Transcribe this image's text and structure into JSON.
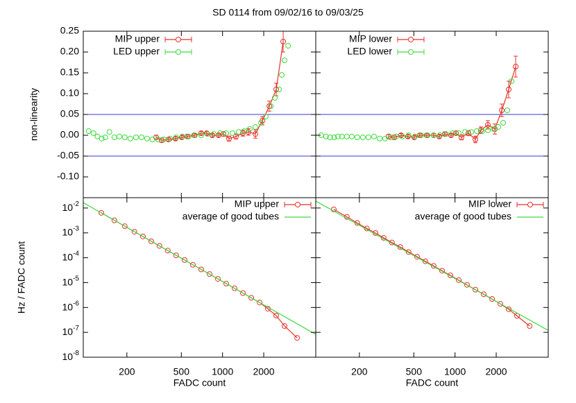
{
  "title": "SD 0114  from 09/02/16 to 09/03/25",
  "chart_data": [
    {
      "type": "line",
      "y_label": "non-linearity",
      "xscale": "log",
      "xlim": [
        96,
        4800
      ],
      "ylim": [
        -0.15,
        0.25
      ],
      "yticks": [
        0.25,
        {
          "value": 0.2,
          "label": "0.20"
        },
        0.15,
        {
          "value": 0.1,
          "label": "0.10"
        },
        0.05,
        {
          "value": 0,
          "label": "0.00"
        },
        -0.05,
        {
          "value": -0.1,
          "label": "-0.10"
        }
      ],
      "hlines": [
        0.05,
        -0.05
      ],
      "hline_color": "#3a3ad6",
      "legend": "upper left",
      "series": [
        {
          "name": "MIP upper",
          "color": "#e8302a",
          "style": "linespoints",
          "x": [
            327,
            359,
            403,
            453,
            504,
            553,
            621,
            698,
            767,
            842,
            935,
            1016,
            1115,
            1253,
            1409,
            1545,
            1738,
            1954,
            2198,
            2467,
            2775
          ],
          "values": [
            -0.005,
            -0.012,
            -0.01,
            -0.008,
            -0.005,
            -0.003,
            0.0,
            0.005,
            0.005,
            0.0,
            0.0,
            0.003,
            -0.008,
            -0.003,
            0.005,
            0.008,
            0.003,
            0.035,
            0.07,
            0.11,
            0.225
          ],
          "errors": [
            0.005,
            0.005,
            0.004,
            0.004,
            0.004,
            0.004,
            0.004,
            0.004,
            0.004,
            0.004,
            0.004,
            0.005,
            0.006,
            0.006,
            0.007,
            0.008,
            0.01,
            0.01,
            0.012,
            0.015,
            0.025
          ]
        },
        {
          "name": "LED upper",
          "color": "#3ddc3d",
          "style": "points",
          "x": [
            105,
            114,
            122,
            131,
            139,
            149,
            162,
            176,
            193,
            212,
            233,
            256,
            281,
            308,
            338,
            372,
            413,
            458,
            509,
            566,
            629,
            698,
            776,
            862,
            958,
            1064,
            1183,
            1313,
            1442,
            1581,
            1738,
            1910,
            2070,
            2249,
            2410,
            2588,
            2710,
            2838,
            3013
          ],
          "values": [
            0.01,
            0.005,
            -0.003,
            -0.008,
            -0.005,
            0.008,
            -0.005,
            -0.003,
            -0.005,
            -0.008,
            -0.005,
            -0.005,
            -0.008,
            -0.01,
            -0.01,
            -0.01,
            -0.008,
            -0.005,
            -0.003,
            -0.003,
            0.0,
            0.0,
            0.003,
            0.003,
            0.005,
            0.005,
            0.005,
            0.008,
            0.01,
            0.015,
            0.02,
            0.03,
            0.045,
            0.07,
            0.09,
            0.11,
            0.145,
            0.18,
            0.215
          ]
        }
      ]
    },
    {
      "type": "line",
      "xscale": "log",
      "xlim": [
        96,
        4800
      ],
      "ylim": [
        -0.15,
        0.25
      ],
      "hlines": [
        0.05,
        -0.05
      ],
      "hline_color": "#3a3ad6",
      "legend": "upper left",
      "series": [
        {
          "name": "MIP lower",
          "color": "#e8302a",
          "style": "linespoints",
          "x": [
            327,
            359,
            403,
            453,
            504,
            553,
            621,
            698,
            767,
            842,
            935,
            1016,
            1115,
            1253,
            1409,
            1545,
            1738,
            1954,
            2198,
            2467,
            2775
          ],
          "values": [
            -0.003,
            -0.005,
            0.0,
            -0.003,
            -0.005,
            0.0,
            0.0,
            0.0,
            -0.003,
            0.003,
            0.0,
            0.005,
            -0.005,
            0.005,
            -0.01,
            0.012,
            0.025,
            0.015,
            0.06,
            0.11,
            0.165
          ],
          "errors": [
            0.005,
            0.005,
            0.004,
            0.004,
            0.004,
            0.004,
            0.004,
            0.004,
            0.004,
            0.004,
            0.004,
            0.005,
            0.006,
            0.006,
            0.008,
            0.008,
            0.01,
            0.012,
            0.015,
            0.02,
            0.025
          ]
        },
        {
          "name": "LED lower",
          "color": "#3ddc3d",
          "style": "points",
          "x": [
            105,
            114,
            122,
            131,
            139,
            149,
            162,
            176,
            193,
            212,
            233,
            256,
            281,
            308,
            338,
            372,
            413,
            458,
            509,
            566,
            629,
            698,
            776,
            862,
            958,
            1064,
            1183,
            1313,
            1442,
            1581,
            1738,
            1910,
            2070,
            2249,
            2410,
            2588
          ],
          "values": [
            0.0,
            -0.003,
            -0.005,
            -0.005,
            -0.003,
            -0.003,
            -0.003,
            -0.003,
            -0.005,
            -0.005,
            -0.005,
            -0.003,
            -0.008,
            -0.008,
            -0.005,
            -0.003,
            -0.003,
            0.0,
            -0.003,
            0.0,
            0.0,
            0.0,
            0.0,
            0.003,
            0.005,
            0.005,
            0.008,
            0.008,
            0.01,
            0.01,
            0.012,
            0.015,
            0.02,
            0.03,
            0.06,
            0.13
          ]
        }
      ]
    },
    {
      "type": "line",
      "y_label": "Hz / FADC count",
      "x_label": "FADC count",
      "xscale": "log",
      "yscale": "log",
      "xlim": [
        96,
        4800
      ],
      "ylim": [
        1e-08,
        0.026
      ],
      "xticks": [
        200,
        500,
        1000,
        2000
      ],
      "yticks": [
        {
          "value": 0.01,
          "label": "10^-2"
        },
        {
          "value": 0.001,
          "label": "10^-3"
        },
        {
          "value": 0.0001,
          "label": "10^-4"
        },
        {
          "value": 1e-05,
          "label": "10^-5"
        },
        {
          "value": 1e-06,
          "label": "10^-6"
        },
        {
          "value": 1e-07,
          "label": "10^-7"
        },
        {
          "value": 1e-08,
          "label": "10^-8"
        }
      ],
      "legend": "upper right",
      "series": [
        {
          "name": "MIP upper",
          "color": "#e8302a",
          "style": "linespoints",
          "x": [
            130,
            162,
            193,
            227,
            262,
            301,
            346,
            398,
            458,
            528,
            607,
            698,
            804,
            925,
            1064,
            1224,
            1409,
            1622,
            1866,
            2144,
            2467,
            2838,
            3508
          ],
          "values": [
            0.0064,
            0.0032,
            0.00185,
            0.00111,
            0.00072,
            0.00046,
            0.0003,
            0.000194,
            0.000125,
            8.1e-05,
            5.2e-05,
            3.4e-05,
            2.2e-05,
            1.41e-05,
            9.1e-06,
            5.9e-06,
            3.8e-06,
            2.44e-06,
            1.59e-06,
            8.9e-07,
            4.7e-07,
            1.8e-07,
            6e-08
          ]
        },
        {
          "name": "average of good tubes",
          "color": "#3ddc3d",
          "style": "line",
          "x": [
            96,
            4800
          ],
          "values": [
            0.0164,
            8.3e-08
          ]
        }
      ]
    },
    {
      "type": "line",
      "x_label": "FADC count",
      "xscale": "log",
      "yscale": "log",
      "xlim": [
        96,
        4800
      ],
      "ylim": [
        1e-08,
        0.026
      ],
      "xticks": [
        200,
        500,
        1000,
        2000
      ],
      "legend": "upper right",
      "series": [
        {
          "name": "MIP lower",
          "color": "#e8302a",
          "style": "linespoints",
          "x": [
            130,
            162,
            193,
            227,
            262,
            301,
            346,
            398,
            458,
            528,
            607,
            698,
            804,
            925,
            1064,
            1224,
            1409,
            1622,
            1866,
            2144,
            2467,
            2838,
            3508
          ],
          "values": [
            0.0088,
            0.0044,
            0.0025,
            0.0015,
            0.00099,
            0.00063,
            0.00041,
            0.00027,
            0.00017,
            0.00011,
            7.2e-05,
            4.7e-05,
            3e-05,
            1.95e-05,
            1.26e-05,
            8.1e-06,
            5.2e-06,
            3.4e-06,
            2.2e-06,
            1.4e-06,
            8.5e-07,
            4.6e-07,
            1.8e-07
          ]
        },
        {
          "name": "average of good tubes",
          "color": "#3ddc3d",
          "style": "line",
          "x": [
            96,
            4800
          ],
          "values": [
            0.019,
            1.2e-07
          ]
        }
      ]
    }
  ]
}
